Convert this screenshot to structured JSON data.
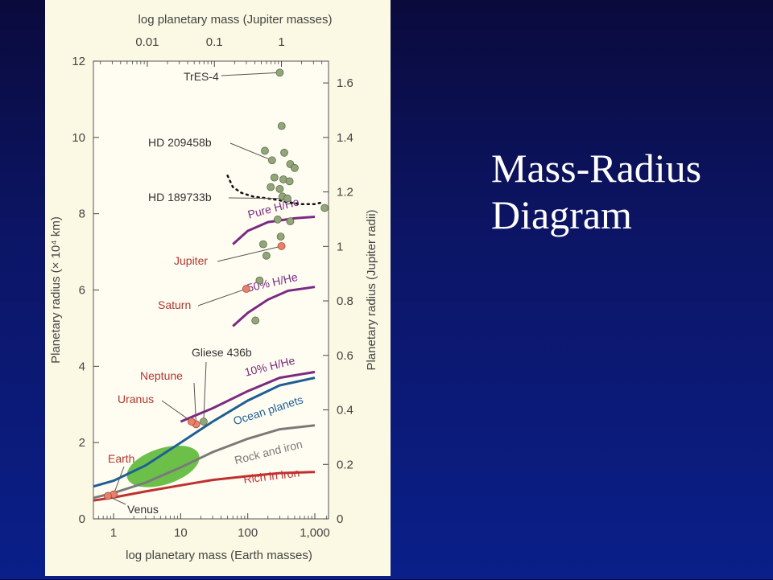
{
  "slide": {
    "title_line1": "Mass-Radius",
    "title_line2": "Diagram"
  },
  "chart_data": {
    "type": "scatter",
    "title": "",
    "xlabel": "log planetary mass (Earth masses)",
    "x2label": "log planetary mass (Jupiter masses)",
    "ylabel": "Planetary radius (× 10⁴ km)",
    "y2label": "Planetary radius (Jupiter radii)",
    "x_scale": "log",
    "xlim": [
      0.5,
      1600
    ],
    "ylim": [
      0,
      12
    ],
    "y2lim": [
      0,
      1.68
    ],
    "x_ticks": [
      1,
      10,
      100,
      1000
    ],
    "x_tick_labels": [
      "1",
      "10",
      "100",
      "1,000"
    ],
    "x2_ticks": [
      0.01,
      0.1,
      1
    ],
    "x2_tick_labels": [
      "0.01",
      "0.1",
      "1"
    ],
    "y_ticks": [
      0,
      2,
      4,
      6,
      8,
      10,
      12
    ],
    "y_tick_labels": [
      "0",
      "2",
      "4",
      "6",
      "8",
      "10",
      "12"
    ],
    "y2_ticks": [
      0,
      0.2,
      0.4,
      0.6,
      0.8,
      1.0,
      1.2,
      1.4,
      1.6
    ],
    "y2_tick_labels": [
      "0",
      "0.2",
      "0.4",
      "0.6",
      "0.8",
      "1",
      "1.2",
      "1.4",
      "1.6"
    ],
    "colors": {
      "exoplanet": "#93a67a",
      "solar_system": "#e8806a",
      "pure_hhe": "#7a2a82",
      "ocean": "#1f5e96",
      "rock_iron": "#7a7a7a",
      "rich_iron": "#c03030",
      "ellipse": "#6cc04a"
    },
    "curves": [
      {
        "name": "Pure H/He",
        "color": "#7a2a82",
        "x": [
          60,
          100,
          200,
          500,
          1000
        ],
        "y": [
          7.2,
          7.55,
          7.78,
          7.88,
          7.92
        ]
      },
      {
        "name": "50% H/He",
        "color": "#7a2a82",
        "x": [
          60,
          100,
          200,
          400,
          1000
        ],
        "y": [
          5.05,
          5.4,
          5.75,
          5.98,
          6.08
        ]
      },
      {
        "name": "10% H/He",
        "color": "#7a2a82",
        "x": [
          10,
          30,
          100,
          300,
          1000
        ],
        "y": [
          2.55,
          2.9,
          3.35,
          3.7,
          3.85
        ]
      },
      {
        "name": "Ocean planets",
        "color": "#1f5e96",
        "x": [
          0.5,
          1,
          3,
          10,
          30,
          100,
          300,
          1000
        ],
        "y": [
          0.85,
          1.0,
          1.4,
          2.0,
          2.55,
          3.1,
          3.5,
          3.7
        ]
      },
      {
        "name": "Rock and iron",
        "color": "#7a7a7a",
        "x": [
          0.5,
          1,
          3,
          10,
          30,
          100,
          300,
          1000
        ],
        "y": [
          0.55,
          0.68,
          0.95,
          1.35,
          1.75,
          2.1,
          2.35,
          2.45
        ]
      },
      {
        "name": "Rich in iron",
        "color": "#c03030",
        "x": [
          0.5,
          1,
          3,
          10,
          30,
          100,
          300,
          1000
        ],
        "y": [
          0.48,
          0.56,
          0.72,
          0.88,
          1.02,
          1.12,
          1.2,
          1.23
        ]
      }
    ],
    "boundary": {
      "x": [
        50,
        60,
        80,
        120,
        200,
        300,
        400,
        600,
        1000,
        1300
      ],
      "y": [
        9.0,
        8.7,
        8.55,
        8.45,
        8.4,
        8.35,
        8.3,
        8.25,
        8.25,
        8.3
      ]
    },
    "region": {
      "x": [
        1.5,
        20
      ],
      "y": [
        0.9,
        1.85
      ]
    },
    "exoplanets": [
      {
        "x": 300,
        "y": 11.7
      },
      {
        "x": 320,
        "y": 10.3
      },
      {
        "x": 180,
        "y": 9.65
      },
      {
        "x": 350,
        "y": 9.6
      },
      {
        "x": 230,
        "y": 9.4
      },
      {
        "x": 430,
        "y": 9.3
      },
      {
        "x": 500,
        "y": 9.2
      },
      {
        "x": 250,
        "y": 8.95
      },
      {
        "x": 340,
        "y": 8.9
      },
      {
        "x": 420,
        "y": 8.85
      },
      {
        "x": 220,
        "y": 8.7
      },
      {
        "x": 300,
        "y": 8.65
      },
      {
        "x": 330,
        "y": 8.45
      },
      {
        "x": 390,
        "y": 8.4
      },
      {
        "x": 1400,
        "y": 8.15
      },
      {
        "x": 280,
        "y": 7.85
      },
      {
        "x": 430,
        "y": 7.8
      },
      {
        "x": 310,
        "y": 7.4
      },
      {
        "x": 170,
        "y": 7.2
      },
      {
        "x": 190,
        "y": 6.9
      },
      {
        "x": 150,
        "y": 6.25
      },
      {
        "x": 130,
        "y": 5.2
      },
      {
        "x": 22,
        "y": 2.55
      }
    ],
    "solar_system": [
      {
        "name": "Jupiter",
        "x": 318,
        "y": 7.15
      },
      {
        "name": "Saturn",
        "x": 95,
        "y": 6.03
      },
      {
        "name": "Neptune",
        "x": 17,
        "y": 2.48
      },
      {
        "name": "Uranus",
        "x": 14.5,
        "y": 2.55
      },
      {
        "name": "Earth",
        "x": 1.0,
        "y": 0.64
      },
      {
        "name": "Venus",
        "x": 0.82,
        "y": 0.6
      }
    ],
    "annotations": [
      {
        "text": "TrES-4",
        "x": 300,
        "y": 11.7
      },
      {
        "text": "HD 209458b",
        "x": 230,
        "y": 9.4
      },
      {
        "text": "HD 189733b",
        "x": 390,
        "y": 8.4
      },
      {
        "text": "Jupiter",
        "x": 318,
        "y": 7.15
      },
      {
        "text": "Saturn",
        "x": 95,
        "y": 6.03
      },
      {
        "text": "Gliese 436b",
        "x": 22,
        "y": 2.55
      },
      {
        "text": "Neptune",
        "x": 17,
        "y": 2.48
      },
      {
        "text": "Uranus",
        "x": 14.5,
        "y": 2.55
      },
      {
        "text": "Earth",
        "x": 1.0,
        "y": 0.64
      },
      {
        "text": "Venus",
        "x": 0.82,
        "y": 0.6
      }
    ]
  }
}
